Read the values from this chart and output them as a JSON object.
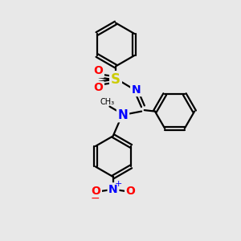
{
  "background_color": "#e8e8e8",
  "bond_color": "#000000",
  "N_color": "#0000ff",
  "S_color": "#cccc00",
  "O_color": "#ff0000",
  "line_width": 1.6,
  "figsize": [
    3.0,
    3.0
  ],
  "dpi": 100,
  "xlim": [
    0,
    10
  ],
  "ylim": [
    0,
    10
  ]
}
